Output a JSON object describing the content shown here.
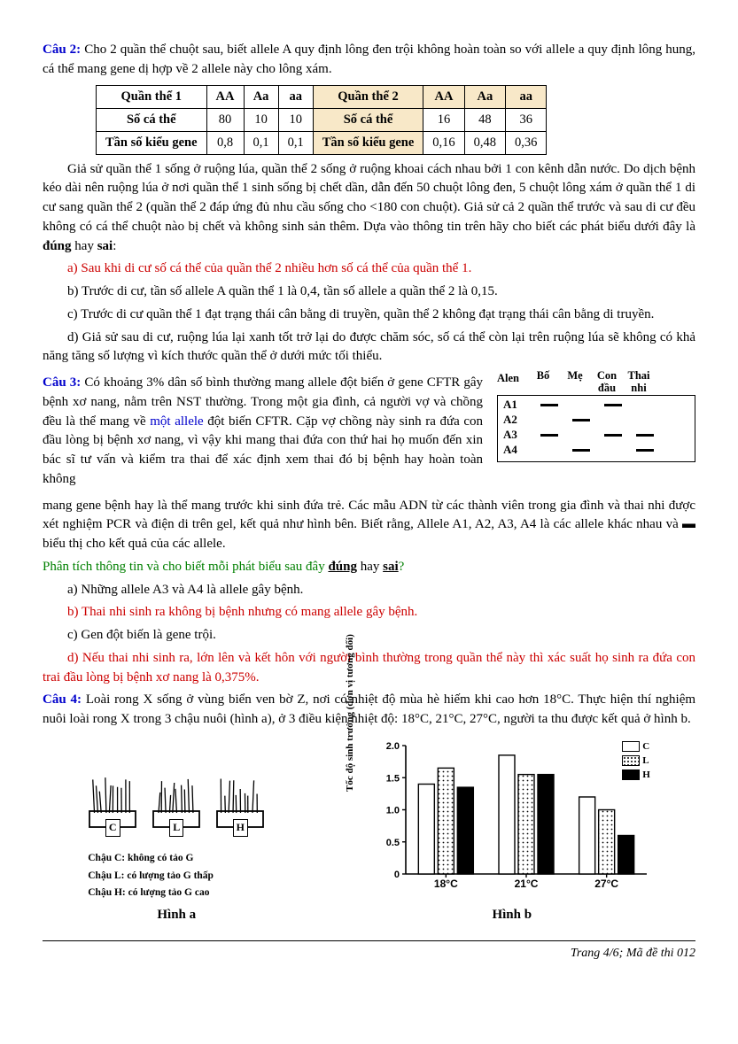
{
  "q2": {
    "label": "Câu 2:",
    "intro": "Cho 2 quần thể chuột sau, biết allele A quy định lông đen trội không hoàn toàn so với allele a quy định lông hung, cá thể mang gene dị hợp về 2 allele này cho lông xám.",
    "table": {
      "h1": "Quần thể 1",
      "h2": "Quần thể 2",
      "cols": [
        "AA",
        "Aa",
        "aa"
      ],
      "rows": [
        {
          "name": "Số cá thể",
          "p1": [
            "80",
            "10",
            "10"
          ],
          "p2": [
            "16",
            "48",
            "36"
          ]
        },
        {
          "name": "Tần số kiểu gene",
          "p1": [
            "0,8",
            "0,1",
            "0,1"
          ],
          "p2": [
            "0,16",
            "0,48",
            "0,36"
          ]
        }
      ]
    },
    "para": "Giả sử quần thể 1 sống ở ruộng lúa, quần thể 2 sống ở ruộng khoai cách nhau bởi 1 con kênh dẫn nước. Do dịch bệnh kéo dài nên ruộng lúa ở nơi quần thể 1 sinh sống bị chết dần, dẫn đến 50 chuột lông đen, 5 chuột lông xám ở quần thể 1 di cư sang quần thể 2 (quần thể 2 đáp ứng đủ nhu cầu sống cho <180 con chuột). Giả sử cả 2 quần thể trước và sau di cư đều không có cá thể chuột nào bị chết và không sinh sản thêm.  Dựa vào thông tin trên hãy cho biết các phát biểu dưới đây là ",
    "para_tail": ":",
    "bold1": "đúng",
    "mid": " hay ",
    "bold2": "sai",
    "a": "a) Sau khi di cư số cá thể của quần thể 2 nhiều hơn số cá thể của quần thể 1.",
    "b": "b) Trước di cư, tần số allele A quần thể 1 là 0,4, tần số allele a quần thể 2 là 0,15.",
    "c": "c) Trước di cư quần thể 1 đạt trạng thái cân bằng di truyền, quần thể 2 không đạt trạng thái cân bằng di truyền.",
    "d": "d) Giả sử sau di cư, ruộng lúa lại xanh tốt trở lại do được chăm sóc, số cá thể còn lại trên ruộng lúa sẽ không có khả năng tăng số lượng vì kích thước quần thể ở dưới mức tối thiểu."
  },
  "q3": {
    "label": "Câu 3:",
    "p1a": "Có khoảng 3% dân số bình thường mang allele đột biến ở gene CFTR gây bệnh xơ nang, nằm trên NST thường. Trong một gia đình, cả người vợ và chồng đều là thể mang về ",
    "blue": "một allele",
    "p1b": " đột biến CFTR. Cặp vợ chồng này sinh ra đứa con đầu lòng bị bệnh xơ nang, vì vậy khi mang thai đứa con thứ hai họ muốn đến xin bác sĩ tư vấn và kiểm tra thai để xác định xem thai đó bị bệnh hay hoàn toàn không",
    "p2": "mang gene bệnh hay là thể mang trước khi sinh đứa trẻ. Các mẫu ADN từ các thành viên trong gia đình và thai nhi được xét nghiệm PCR và điện di trên gel, kết quả như hình bên. Biết rằng, Allele A1, A2, A3, A4 là các allele khác nhau và ▬ biểu thị cho kết quả của các allele.",
    "prompt": "Phân tích thông tin và cho biết mỗi phát biểu sau đây ",
    "bold1": "đúng",
    "mid": " hay ",
    "bold2": "sai",
    "tail": "?",
    "a": "a) Những allele A3 và A4 là allele gây bệnh.",
    "b": "b) Thai nhi sinh ra không bị bệnh nhưng có mang allele gây bệnh.",
    "c": "c) Gen đột biến là gene trội.",
    "d": "d) Nếu thai nhi sinh ra, lớn lên và kết hôn với người bình thường trong quần thể này thì xác suất họ sinh ra đứa con trai đầu lòng bị bệnh xơ nang là 0,375%.",
    "gel": {
      "hAllele": "Alen",
      "hBo": "Bố",
      "hMe": "Mẹ",
      "hCon": "Con đầu",
      "hThai": "Thai nhi",
      "rows": [
        {
          "l": "A1",
          "cells": [
            true,
            false,
            true,
            false
          ]
        },
        {
          "l": "A2",
          "cells": [
            false,
            true,
            false,
            false
          ]
        },
        {
          "l": "A3",
          "cells": [
            true,
            false,
            true,
            true
          ]
        },
        {
          "l": "A4",
          "cells": [
            false,
            true,
            false,
            true
          ]
        }
      ]
    }
  },
  "q4": {
    "label": "Câu 4:",
    "intro": "Loài rong X sống ở vùng biển ven bờ Z, nơi có nhiệt độ mùa hè hiếm khi cao hơn 18°C. Thực hiện thí nghiệm nuôi loài rong X trong 3 chậu nuôi (hình a), ở 3 điều kiện nhiệt độ: 18°C, 21°C, 27°C, người ta thu được kết quả ở hình b.",
    "figA": {
      "basins": [
        "C",
        "L",
        "H"
      ],
      "cap1": "Chậu C: không có tảo G",
      "cap2": "Chậu L: có lượng tảo G thấp",
      "cap3": "Chậu H: có lượng tảo G cao",
      "caption": "Hình a"
    },
    "figB": {
      "caption": "Hình b",
      "ylabel": "Tốc độ sinh trưởng\n(đơn vị tương đối)",
      "yticks": [
        "0",
        "0.5",
        "1.0",
        "1.5",
        "2.0"
      ],
      "ymax": 2.0,
      "xlabels": [
        "18°C",
        "21°C",
        "27°C"
      ],
      "series": {
        "C": "C",
        "L": "L",
        "H": "H"
      },
      "data": [
        {
          "C": 1.4,
          "L": 1.65,
          "H": 1.35
        },
        {
          "C": 1.85,
          "L": 1.55,
          "H": 1.55
        },
        {
          "C": 1.2,
          "L": 1.0,
          "H": 0.6
        }
      ],
      "colors": {
        "C": "#ffffff",
        "H": "#000000"
      }
    }
  },
  "footer": "Trang 4/6; Mã đề thi 012"
}
